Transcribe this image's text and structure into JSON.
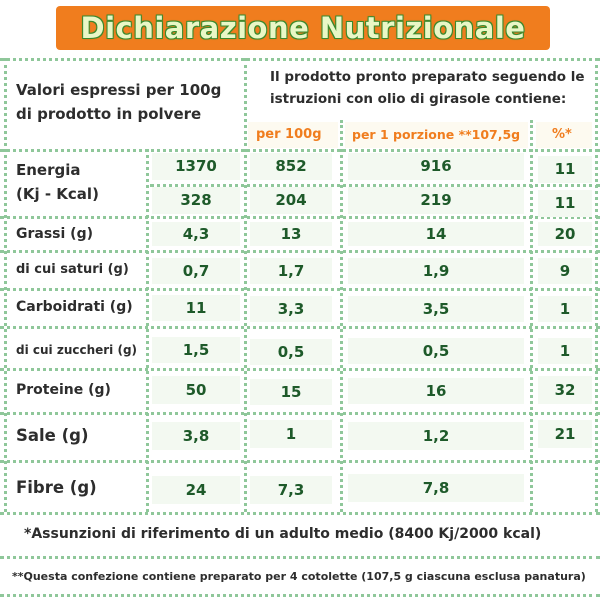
{
  "title": "Dichiarazione Nutrizionale",
  "header": {
    "left_line1": "Valori espressi per 100g",
    "left_line2": "di prodotto in polvere",
    "right_line1": "Il prodotto pronto preparato seguendo le",
    "right_line2": "istruzioni con olio di girasole contiene:"
  },
  "subheaders": {
    "per100": "per 100g",
    "perportion": "per 1 porzione **107,5g",
    "percent": "%*"
  },
  "rows": {
    "energia": {
      "label1": "Energia",
      "label2": "(Kj - Kcal)",
      "kj": [
        "1370",
        "852",
        "916",
        "11"
      ],
      "kcal": [
        "328",
        "204",
        "219",
        "11"
      ]
    },
    "grassi": {
      "label": "Grassi (g)",
      "values": [
        "4,3",
        "13",
        "14",
        "20"
      ]
    },
    "saturi": {
      "label": "di cui saturi (g)",
      "values": [
        "0,7",
        "1,7",
        "1,9",
        "9"
      ]
    },
    "carboidrati": {
      "label": "Carboidrati (g)",
      "values": [
        "11",
        "3,3",
        "3,5",
        "1"
      ]
    },
    "zuccheri": {
      "label": "di cui zuccheri (g)",
      "values": [
        "1,5",
        "0,5",
        "0,5",
        "1"
      ]
    },
    "proteine": {
      "label": "Proteine (g)",
      "values": [
        "50",
        "15",
        "16",
        "32"
      ]
    },
    "sale": {
      "label": "Sale (g)",
      "values": [
        "3,8",
        "1",
        "1,2",
        "21"
      ]
    },
    "fibre": {
      "label": "Fibre (g)",
      "values": [
        "24",
        "7,3",
        "7,8",
        ""
      ]
    }
  },
  "footnotes": {
    "note1": "*Assunzioni di riferimento di un adulto medio (8400 Kj/2000 kcal)",
    "note2": "**Questa confezione contiene preparato per 4 cotolette (107,5 g ciascuna esclusa panatura)"
  },
  "colors": {
    "accent": "#f07d1e",
    "green": "#1e5a2a",
    "dotted_lines": "#8fc79a",
    "title_text": "#e9f7c6"
  }
}
